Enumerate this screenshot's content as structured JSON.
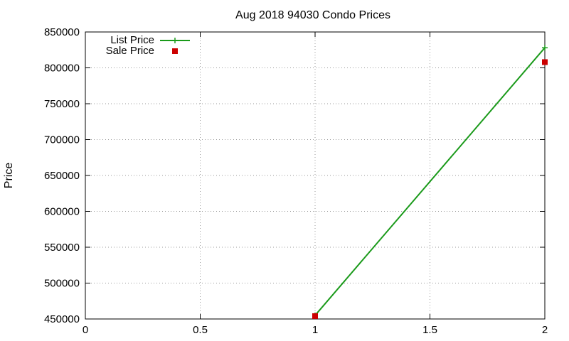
{
  "chart_data": {
    "type": "line",
    "title": "Aug 2018 94030 Condo Prices",
    "xlabel": "",
    "ylabel": "Price",
    "xlim": [
      0,
      2
    ],
    "ylim": [
      450000,
      850000
    ],
    "x_ticks": [
      0,
      0.5,
      1,
      1.5,
      2
    ],
    "x_tick_labels": [
      "0",
      "0.5",
      "1",
      "1.5",
      "2"
    ],
    "y_ticks": [
      450000,
      500000,
      550000,
      600000,
      650000,
      700000,
      750000,
      800000,
      850000
    ],
    "y_tick_labels": [
      "450000",
      "500000",
      "550000",
      "600000",
      "650000",
      "700000",
      "750000",
      "800000",
      "850000"
    ],
    "grid": true,
    "legend_position": "top-left",
    "series": [
      {
        "name": "List Price",
        "style": "line-with-plus-points",
        "color": "#1a9a1a",
        "x": [
          1,
          2
        ],
        "values": [
          455000,
          828000
        ]
      },
      {
        "name": "Sale Price",
        "style": "square-points",
        "color": "#cc0000",
        "x": [
          1,
          2
        ],
        "values": [
          454000,
          808000
        ]
      }
    ]
  }
}
